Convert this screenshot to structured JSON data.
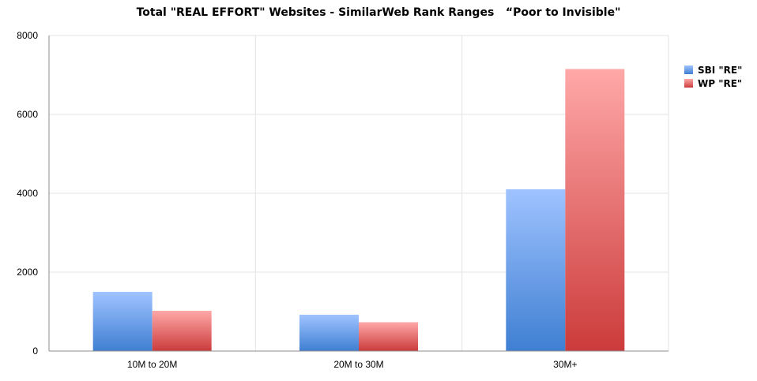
{
  "chart_data": {
    "type": "bar",
    "title": "Total \"REAL EFFORT\" Websites - SimilarWeb Rank Ranges   “Poor to Invisible\"",
    "xlabel": "",
    "ylabel": "",
    "categories": [
      "10M to 20M",
      "20M to 30M",
      "30M+"
    ],
    "series": [
      {
        "name": "SBI \"RE\"",
        "values": [
          1500,
          920,
          4100
        ],
        "color_top": "#9fc3ff",
        "color_bottom": "#3f7fd2"
      },
      {
        "name": "WP \"RE\"",
        "values": [
          1020,
          730,
          7150
        ],
        "color_top": "#ffa8a8",
        "color_bottom": "#cc3b3b"
      }
    ],
    "ylim": [
      0,
      8000
    ],
    "yticks": [
      0,
      2000,
      4000,
      6000,
      8000
    ],
    "grid": true,
    "legend_position": "right"
  }
}
